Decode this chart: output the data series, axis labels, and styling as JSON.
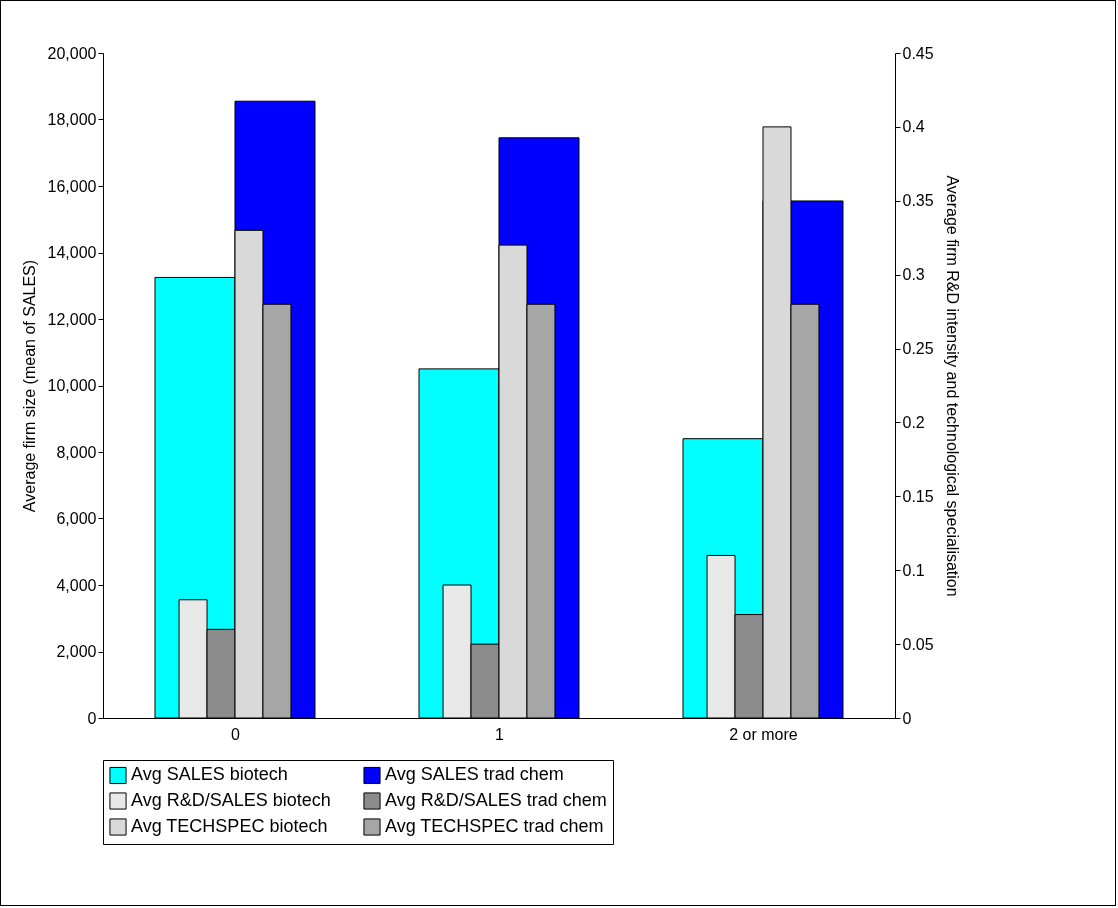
{
  "chart_data": {
    "type": "bar",
    "categories": [
      "0",
      "1",
      "2 or more"
    ],
    "ylabel": "Average firm size (mean of SALES)",
    "y2label": "Average firm R&D intensity and technological specialisation",
    "ylim": [
      0,
      20000
    ],
    "yticks": [
      0,
      {
        "value": 2000,
        "label": "2,000"
      },
      {
        "value": 4000,
        "label": "4,000"
      },
      {
        "value": 6000,
        "label": "6,000"
      },
      {
        "value": 8000,
        "label": "8,000"
      },
      {
        "value": 10000,
        "label": "10,000"
      },
      {
        "value": 12000,
        "label": "12,000"
      },
      {
        "value": 14000,
        "label": "14,000"
      },
      {
        "value": 16000,
        "label": "16,000"
      },
      {
        "value": 18000,
        "label": "18,000"
      },
      {
        "value": 20000,
        "label": "20,000"
      }
    ],
    "y2lim": [
      0,
      0.45
    ],
    "y2ticks": [
      0,
      0.05,
      0.1,
      0.15,
      0.2,
      0.25,
      0.3,
      0.35,
      0.4,
      0.45
    ],
    "grid": false,
    "legend": "bottom",
    "series": [
      {
        "name": "Avg SALES biotech",
        "color": "#00ffff",
        "values": [
          13250,
          10500,
          8400
        ]
      },
      {
        "name": "Avg SALES trad chem",
        "color": "#0000ff",
        "values": [
          18550,
          17450,
          15550
        ]
      },
      {
        "name": "Avg R&D/SALES biotech",
        "color": "#e8e8e8",
        "axis": "y2",
        "values": [
          0.08,
          0.09,
          0.11
        ]
      },
      {
        "name": "Avg R&D/SALES trad chem",
        "color": "#8c8c8c",
        "axis": "y2",
        "values": [
          0.06,
          0.05,
          0.07
        ]
      },
      {
        "name": "Avg TECHSPEC biotech",
        "color": "#d9d9d9",
        "axis": "y2",
        "values": [
          0.33,
          0.32,
          0.4
        ]
      },
      {
        "name": "Avg TECHSPEC trad chem",
        "color": "#a6a6a6",
        "axis": "y2",
        "values": [
          0.28,
          0.28,
          0.28
        ]
      }
    ]
  }
}
